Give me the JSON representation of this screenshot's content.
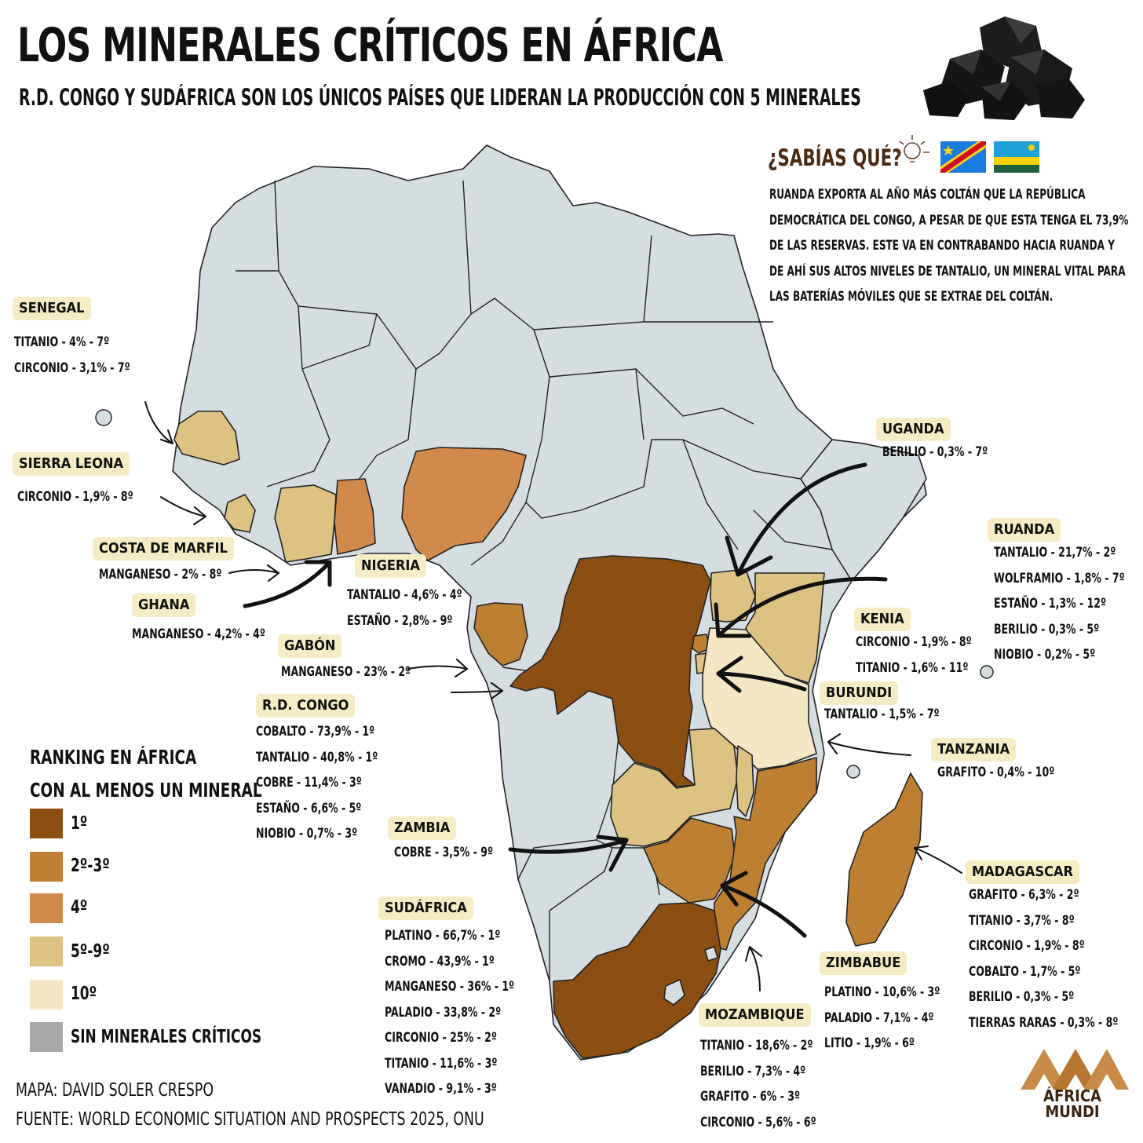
{
  "title": "LOS MINERALES CRÍTICOS EN ÁFRICA",
  "subtitle": "R.D. CONGO Y SUDÁFRICA SON LOS ÚNICOS PAÍSES QUE LIDERAN LA PRODUCCIÓN CON 5 MINERALES",
  "fact": {
    "title": "¿SABÍAS QUÉ?",
    "text": "RUANDA EXPORTA AL AÑO MÁS COLTÁN QUE LA REPÚBLICA DEMOCRÁTICA DEL CONGO, A PESAR DE QUE ESTA TENGA EL 73,9% DE LAS RESERVAS. ESTE VA EN CONTRABANDO HACIA RUANDA Y DE AHÍ SUS ALTOS NIVELES DE TANTALIO, UN MINERAL VITAL PARA LAS BATERÍAS MÓVILES QUE SE EXTRAE DEL COLTÁN."
  },
  "legend": {
    "title_line1": "RANKING EN ÁFRICA",
    "title_line2": "CON AL MENOS UN MINERAL",
    "items": [
      {
        "label": "1º",
        "color": "#8b4e13"
      },
      {
        "label": "2º-3º",
        "color": "#bd7f32"
      },
      {
        "label": "4º",
        "color": "#d28a4c"
      },
      {
        "label": "5º-9º",
        "color": "#ddc283"
      },
      {
        "label": "10º",
        "color": "#f5e6c4"
      },
      {
        "label": "SIN MINERALES CRÍTICOS",
        "color": "#a8a8a8"
      }
    ]
  },
  "land_color": "#d6dde0",
  "countries": [
    {
      "name": "SENEGAL",
      "lines": [
        "TITANIO - 4% - 7º",
        "CIRCONIO - 3,1% - 7º"
      ]
    },
    {
      "name": "SIERRA LEONA",
      "lines": [
        "CIRCONIO - 1,9% - 8º"
      ]
    },
    {
      "name": "COSTA DE MARFIL",
      "lines": [
        "MANGANESO - 2% - 8º"
      ]
    },
    {
      "name": "GHANA",
      "lines": [
        "MANGANESO - 4,2% - 4º"
      ]
    },
    {
      "name": "NIGERIA",
      "lines": [
        "TANTALIO - 4,6% - 4º",
        "ESTAÑO - 2,8% - 9º"
      ]
    },
    {
      "name": "GABÓN",
      "lines": [
        "MANGANESO - 23% - 2º"
      ]
    },
    {
      "name": "R.D. CONGO",
      "lines": [
        "COBALTO - 73,9% - 1º",
        "TANTALIO - 40,8% - 1º",
        "COBRE - 11,4% - 3º",
        "ESTAÑO - 6,6% - 5º",
        "NIOBIO - 0,7% - 3º"
      ]
    },
    {
      "name": "ZAMBIA",
      "lines": [
        "COBRE - 3,5% - 9º"
      ]
    },
    {
      "name": "SUDÁFRICA",
      "lines": [
        "PLATINO - 66,7% - 1º",
        "CROMO - 43,9% - 1º",
        "MANGANESO - 36% - 1º",
        "PALADIO - 33,8% - 2º",
        "CIRCONIO - 25% - 2º",
        "TITANIO - 11,6% - 3º",
        "VANADIO - 9,1% - 3º"
      ]
    },
    {
      "name": "MOZAMBIQUE",
      "lines": [
        "TITANIO - 18,6% - 2º",
        "BERILIO - 7,3% - 4º",
        "GRAFITO - 6% - 3º",
        "CIRCONIO - 5,6% - 6º"
      ]
    },
    {
      "name": "ZIMBABUE",
      "lines": [
        "PLATINO - 10,6% - 3º",
        "PALADIO - 7,1% - 4º",
        "LITIO - 1,9% - 6º"
      ]
    },
    {
      "name": "MADAGASCAR",
      "lines": [
        "GRAFITO - 6,3% - 2º",
        "TITANIO - 3,7% - 8º",
        "CIRCONIO - 1,9% - 8º",
        "COBALTO - 1,7% - 5º",
        "BERILIO - 0,3% - 5º",
        "TIERRAS RARAS - 0,3% - 8º"
      ]
    },
    {
      "name": "TANZANIA",
      "lines": [
        "GRAFITO - 0,4% - 10º"
      ]
    },
    {
      "name": "BURUNDI",
      "lines": [
        "TANTALIO - 1,5% - 7º"
      ]
    },
    {
      "name": "KENIA",
      "lines": [
        "CIRCONIO - 1,9% - 8º",
        "TITANIO - 1,6% - 11º"
      ]
    },
    {
      "name": "RUANDA",
      "lines": [
        "TANTALIO - 21,7% - 2º",
        "WOLFRAMIO - 1,8% - 7º",
        "ESTAÑO - 1,3% - 12º",
        "BERILIO - 0,3% - 5º",
        "NIOBIO - 0,2% - 5º"
      ]
    },
    {
      "name": "UGANDA",
      "lines": [
        "BERILIO - 0,3% - 7º"
      ]
    }
  ],
  "credits": {
    "map": "MAPA: DAVID SOLER CRESPO",
    "source": "FUENTE: WORLD ECONOMIC SITUATION AND PROSPECTS 2025, ONU"
  },
  "brand": {
    "line1": "ÁFRICA",
    "line2": "MUNDI"
  }
}
